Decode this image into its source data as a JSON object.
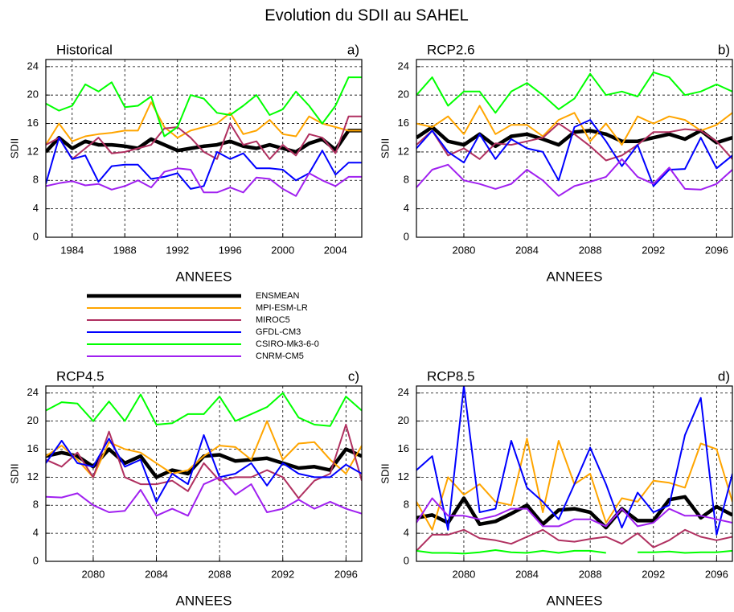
{
  "title": "Evolution du SDII au SAHEL",
  "chart_data": [
    {
      "type": "line",
      "title": "Historical",
      "label": "a)",
      "xlabel": "ANNEES",
      "ylabel": "SDII",
      "grid": true,
      "xlim": [
        1982,
        2006
      ],
      "xticks": [
        1984,
        1988,
        1992,
        1996,
        2000,
        2004
      ],
      "ylim": [
        0,
        25
      ],
      "yticks": [
        0,
        4,
        8,
        12,
        16,
        20,
        24
      ],
      "x": [
        1982,
        1983,
        1984,
        1985,
        1986,
        1987,
        1988,
        1989,
        1990,
        1991,
        1992,
        1993,
        1994,
        1995,
        1996,
        1997,
        1998,
        1999,
        2000,
        2001,
        2002,
        2003,
        2004,
        2005,
        2006
      ],
      "series": [
        {
          "name": "ENSMEAN",
          "color": "#000000",
          "values": [
            12,
            14,
            12.5,
            13.5,
            13,
            13,
            12.8,
            12.5,
            13.8,
            13,
            12.2,
            12.5,
            12.8,
            13,
            13.5,
            12.8,
            12.5,
            13,
            12.5,
            12,
            13.2,
            13.8,
            12.3,
            15,
            15
          ]
        },
        {
          "name": "MPI-ESM-LR",
          "color": "#ffa500",
          "values": [
            13,
            16,
            13.5,
            14.2,
            14.5,
            14.7,
            15,
            15,
            19,
            15.5,
            14,
            15,
            15.5,
            16,
            17.5,
            14.5,
            15,
            16.5,
            14.5,
            14.2,
            17,
            16,
            15.5,
            15,
            15
          ]
        },
        {
          "name": "MIROC5",
          "color": "#b03060",
          "values": [
            13,
            14,
            11,
            12.5,
            14,
            11.8,
            12,
            12.5,
            13,
            15.3,
            15.5,
            14,
            12,
            11,
            16,
            13,
            13.5,
            11,
            13,
            11.5,
            14.5,
            14,
            11.8,
            17,
            17
          ]
        },
        {
          "name": "GFDL-CM3",
          "color": "#0000ff",
          "values": [
            7.5,
            14,
            11,
            11.5,
            7.8,
            10,
            10.2,
            10.2,
            8.2,
            8.5,
            9,
            6.8,
            7.2,
            12,
            11,
            11.8,
            9.7,
            9.7,
            9.5,
            8,
            9,
            12.2,
            8.8,
            10.5,
            10.5
          ]
        },
        {
          "name": "CSIRO-Mk3-6-0",
          "color": "#00ff00",
          "values": [
            18.8,
            17.8,
            18.5,
            21.5,
            20.5,
            21.8,
            18.3,
            18.5,
            19.8,
            14.2,
            15.5,
            20,
            19.5,
            17.5,
            17.2,
            18.5,
            20,
            17.2,
            18,
            20.5,
            18.5,
            16,
            18.5,
            22.5,
            22.5
          ]
        },
        {
          "name": "CNRM-CM5",
          "color": "#a020f0",
          "values": [
            7.2,
            7.6,
            7.9,
            7.3,
            7.5,
            6.7,
            7.2,
            8,
            7,
            9.2,
            9.7,
            9.5,
            6.3,
            6.3,
            7,
            6.3,
            8.4,
            8.2,
            6.8,
            5.8,
            9,
            8,
            7.2,
            8.5,
            8.5
          ]
        }
      ]
    },
    {
      "type": "line",
      "title": "RCP2.6",
      "label": "b)",
      "xlabel": "ANNEES",
      "ylabel": "SDII",
      "grid": true,
      "xlim": [
        2077,
        2097
      ],
      "xticks": [
        2080,
        2084,
        2088,
        2092,
        2096
      ],
      "ylim": [
        0,
        25
      ],
      "yticks": [
        0,
        4,
        8,
        12,
        16,
        20,
        24
      ],
      "x": [
        2077,
        2078,
        2079,
        2080,
        2081,
        2082,
        2083,
        2084,
        2085,
        2086,
        2087,
        2088,
        2089,
        2090,
        2091,
        2092,
        2093,
        2094,
        2095,
        2096,
        2097
      ],
      "series": [
        {
          "color": "#000000",
          "values": [
            14,
            15.5,
            13.5,
            13,
            14.5,
            12.8,
            14.2,
            14.5,
            13.8,
            13,
            14.8,
            15,
            14.5,
            13.5,
            13.5,
            14,
            14.5,
            13.8,
            15,
            13.3,
            14
          ]
        },
        {
          "color": "#ffa500",
          "values": [
            16,
            15.5,
            17,
            14.5,
            18.5,
            14.5,
            15.8,
            15.8,
            14.2,
            16.5,
            17.5,
            13.5,
            16,
            13,
            17,
            16,
            17,
            16.5,
            15,
            15.8,
            17.5
          ]
        },
        {
          "color": "#b03060",
          "values": [
            13,
            15,
            11.5,
            12.5,
            11,
            13.2,
            13,
            13.5,
            14,
            16,
            14.5,
            12.8,
            10.8,
            11.5,
            13,
            14.8,
            14.8,
            15.2,
            15,
            13.5,
            11
          ]
        },
        {
          "color": "#0000ff",
          "values": [
            12.5,
            15,
            12,
            10.5,
            14.5,
            11,
            13.8,
            12.5,
            12,
            8,
            15.5,
            16.5,
            13.5,
            10,
            13,
            7.2,
            9.5,
            9.6,
            14,
            9.7,
            11.5
          ]
        },
        {
          "color": "#00ff00",
          "values": [
            20,
            22.5,
            18.5,
            20.5,
            20.5,
            17.5,
            20.5,
            21.7,
            20,
            18,
            19.5,
            23,
            20,
            20.5,
            19.8,
            23.2,
            22.5,
            20,
            20.5,
            21.5,
            20.5
          ]
        },
        {
          "color": "#a020f0",
          "values": [
            7,
            9.5,
            10.2,
            8,
            7.5,
            6.8,
            7.5,
            9.5,
            8,
            5.8,
            7.2,
            7.8,
            8.5,
            11,
            8.5,
            7.5,
            9.8,
            6.8,
            6.7,
            7.5,
            9.5
          ]
        }
      ]
    },
    {
      "type": "line",
      "title": "RCP4.5",
      "label": "c)",
      "xlabel": "ANNEES",
      "ylabel": "SDII",
      "grid": true,
      "xlim": [
        2077,
        2097
      ],
      "xticks": [
        2080,
        2084,
        2088,
        2092,
        2096
      ],
      "ylim": [
        0,
        25
      ],
      "yticks": [
        0,
        4,
        8,
        12,
        16,
        20,
        24
      ],
      "x": [
        2077,
        2078,
        2079,
        2080,
        2081,
        2082,
        2083,
        2084,
        2085,
        2086,
        2087,
        2088,
        2089,
        2090,
        2091,
        2092,
        2093,
        2094,
        2095,
        2096,
        2097
      ],
      "series": [
        {
          "color": "#000000",
          "values": [
            15,
            15.5,
            15,
            13.5,
            16,
            14,
            15,
            12,
            13,
            12.5,
            15,
            15.2,
            14.3,
            14.5,
            14.7,
            14,
            13.3,
            13.5,
            13,
            16,
            15
          ]
        },
        {
          "color": "#ffa500",
          "values": [
            15,
            16.5,
            14.5,
            12,
            17,
            16,
            15.5,
            14,
            12.5,
            13,
            15,
            16.5,
            16.3,
            14.5,
            20,
            14.5,
            16.8,
            17,
            14.5,
            12.5,
            16.5
          ]
        },
        {
          "color": "#b03060",
          "values": [
            14.5,
            13.5,
            15.5,
            12,
            18.5,
            12,
            11,
            11,
            11.5,
            10,
            14,
            11.5,
            12,
            12,
            13,
            12,
            9,
            11.5,
            12.5,
            19.5,
            11.5
          ]
        },
        {
          "color": "#0000ff",
          "values": [
            14,
            17.2,
            14,
            13.5,
            17.5,
            13.5,
            14.5,
            8.5,
            12.5,
            11,
            18,
            12,
            12.5,
            14,
            10.8,
            14,
            12.5,
            12,
            12,
            13.8,
            12.5
          ]
        },
        {
          "color": "#00ff00",
          "values": [
            21.5,
            22.7,
            22.5,
            20,
            22.8,
            20,
            23.8,
            19.5,
            19.7,
            21,
            21,
            23.5,
            20,
            21,
            22,
            24,
            20.5,
            19.5,
            19.3,
            23.5,
            21.5
          ]
        },
        {
          "color": "#a020f0",
          "values": [
            9.2,
            9.1,
            9.7,
            8,
            7,
            7.2,
            10.2,
            6.5,
            7.5,
            6.5,
            11,
            12,
            9.5,
            11,
            7,
            7.5,
            8.8,
            7.5,
            8.5,
            7.5,
            6.8
          ]
        }
      ]
    },
    {
      "type": "line",
      "title": "RCP8.5",
      "label": "d)",
      "xlabel": "ANNEES",
      "ylabel": "SDII",
      "grid": true,
      "xlim": [
        2077,
        2097
      ],
      "xticks": [
        2080,
        2084,
        2088,
        2092,
        2096
      ],
      "ylim": [
        0,
        25
      ],
      "yticks": [
        0,
        4,
        8,
        12,
        16,
        20,
        24
      ],
      "x": [
        2077,
        2078,
        2079,
        2080,
        2081,
        2082,
        2083,
        2084,
        2085,
        2086,
        2087,
        2088,
        2089,
        2090,
        2091,
        2092,
        2093,
        2094,
        2095,
        2096,
        2097
      ],
      "series": [
        {
          "color": "#000000",
          "values": [
            6.2,
            6.6,
            5.5,
            9,
            5.3,
            5.7,
            6.8,
            8,
            5.3,
            7.3,
            7.5,
            7,
            4.8,
            7.5,
            5.8,
            5.8,
            8.8,
            9.2,
            6.2,
            7.8,
            6.6
          ]
        },
        {
          "color": "#ffa500",
          "values": [
            8.5,
            4.5,
            12,
            9.5,
            11,
            8.5,
            8,
            17.5,
            7,
            17.2,
            11,
            12.5,
            5.5,
            9,
            8.5,
            11.5,
            11.2,
            10.5,
            16.8,
            16,
            8.5
          ]
        },
        {
          "color": "#b03060",
          "values": [
            1.5,
            3.8,
            3.8,
            4.5,
            3.3,
            3,
            2.5,
            3.5,
            4.5,
            3,
            2.8,
            3.2,
            3.5,
            2.5,
            4,
            2,
            3,
            4.5,
            3.5,
            3,
            3.5
          ]
        },
        {
          "color": "#0000ff",
          "values": [
            13,
            15,
            4.5,
            25,
            7,
            7.5,
            17.2,
            10.5,
            8.5,
            6,
            11,
            16.2,
            11,
            4.8,
            9.8,
            7,
            8,
            18,
            23.3,
            3.8,
            12.5
          ]
        },
        {
          "color": "#00ff00",
          "values": [
            1.5,
            1.2,
            1.2,
            1.1,
            1.3,
            1.6,
            1.3,
            1.2,
            1.5,
            1.2,
            1.5,
            1.5,
            1.2,
            null,
            1.3,
            1.3,
            1.4,
            1.2,
            1.3,
            1.3,
            1.5
          ]
        },
        {
          "color": "#a020f0",
          "values": [
            5.5,
            9,
            6.5,
            6.5,
            6,
            6.5,
            7.5,
            7.5,
            5,
            5,
            6,
            6,
            5,
            7.5,
            5,
            5.5,
            7.5,
            6.5,
            6.5,
            6,
            5.5
          ]
        }
      ]
    }
  ]
}
